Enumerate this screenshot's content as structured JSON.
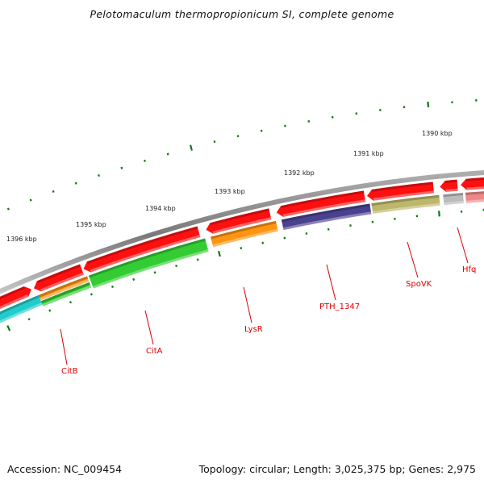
{
  "title": "Pelotomaculum thermopropionicum SI, complete genome",
  "footer": {
    "accession": "Accession: NC_009454",
    "topology": "Topology: circular; Length: 3,025,375 bp; Genes: 2,975"
  },
  "colors": {
    "backbone": "#8a8a8a",
    "tick": "#0a7a0a",
    "label": "#dd0000",
    "red_gene": "#ff1010",
    "green_gene": "#33cc33",
    "orange_gene": "#ff9411",
    "cyan_gene": "#22cccc",
    "purple_gene": "#4a418f",
    "olive_gene": "#bdb76b",
    "grey_gene": "#bbbbbb",
    "pink_gene": "#ee8888"
  },
  "scale_labels": [
    "1396 kbp",
    "1395 kbp",
    "1394 kbp",
    "1393 kbp",
    "1392 kbp",
    "1391 kbp",
    "1390 kbp"
  ],
  "gene_labels": [
    "CitB",
    "CitA",
    "LysR",
    "PTH_1347",
    "SpoVK",
    "Hfq"
  ],
  "genes": [
    {
      "name": "CitB",
      "color": "cyan_gene"
    },
    {
      "name": "CitA",
      "color": "green_gene"
    },
    {
      "name": "LysR",
      "color": "orange_gene"
    },
    {
      "name": "PTH_1347",
      "color": "purple_gene"
    },
    {
      "name": "SpoVK",
      "color": "olive_gene"
    },
    {
      "name": "Hfq",
      "color": "grey_gene"
    }
  ]
}
